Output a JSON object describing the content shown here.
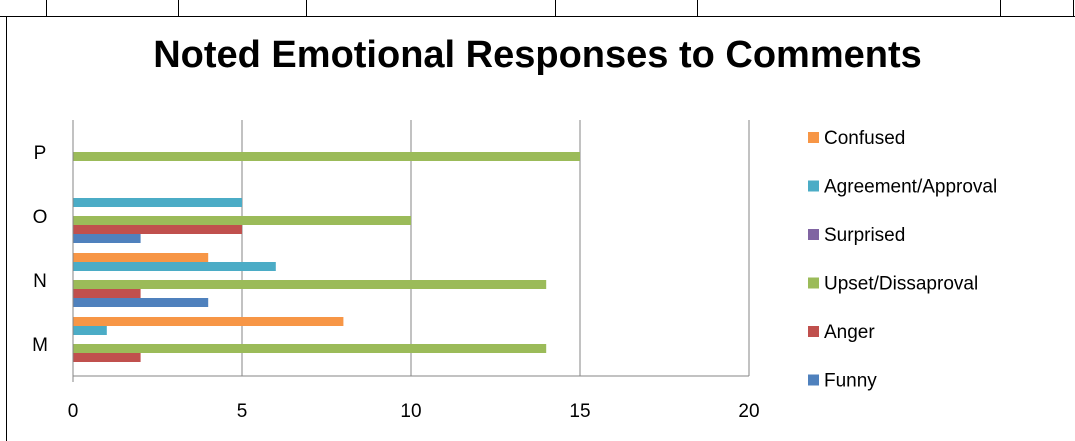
{
  "chart_data": {
    "type": "bar",
    "orientation": "horizontal",
    "title": "Noted Emotional Responses to Comments",
    "xlabel": "",
    "ylabel": "",
    "xlim": [
      0,
      20
    ],
    "x_ticks": [
      "0",
      "5",
      "10",
      "15",
      "20"
    ],
    "categories": [
      "M",
      "N",
      "O",
      "P"
    ],
    "grid": "vertical-major",
    "legend_position": "right",
    "series": [
      {
        "name": "Funny",
        "color": "#4F81BD",
        "values": [
          0,
          4,
          2,
          0
        ]
      },
      {
        "name": "Anger",
        "color": "#C0504D",
        "values": [
          2,
          2,
          5,
          0
        ]
      },
      {
        "name": "Upset/Dissaproval",
        "color": "#9BBB59",
        "values": [
          14,
          14,
          10,
          15
        ]
      },
      {
        "name": "Surprised",
        "color": "#8064A2",
        "values": [
          0,
          0,
          0,
          0
        ]
      },
      {
        "name": "Agreement/Approval",
        "color": "#4BACC6",
        "values": [
          1,
          6,
          5,
          0
        ]
      },
      {
        "name": "Confused",
        "color": "#F79646",
        "values": [
          8,
          4,
          0,
          0
        ]
      }
    ],
    "legend_order": [
      "Confused",
      "Agreement/Approval",
      "Surprised",
      "Upset/Dissaproval",
      "Anger",
      "Funny"
    ]
  }
}
